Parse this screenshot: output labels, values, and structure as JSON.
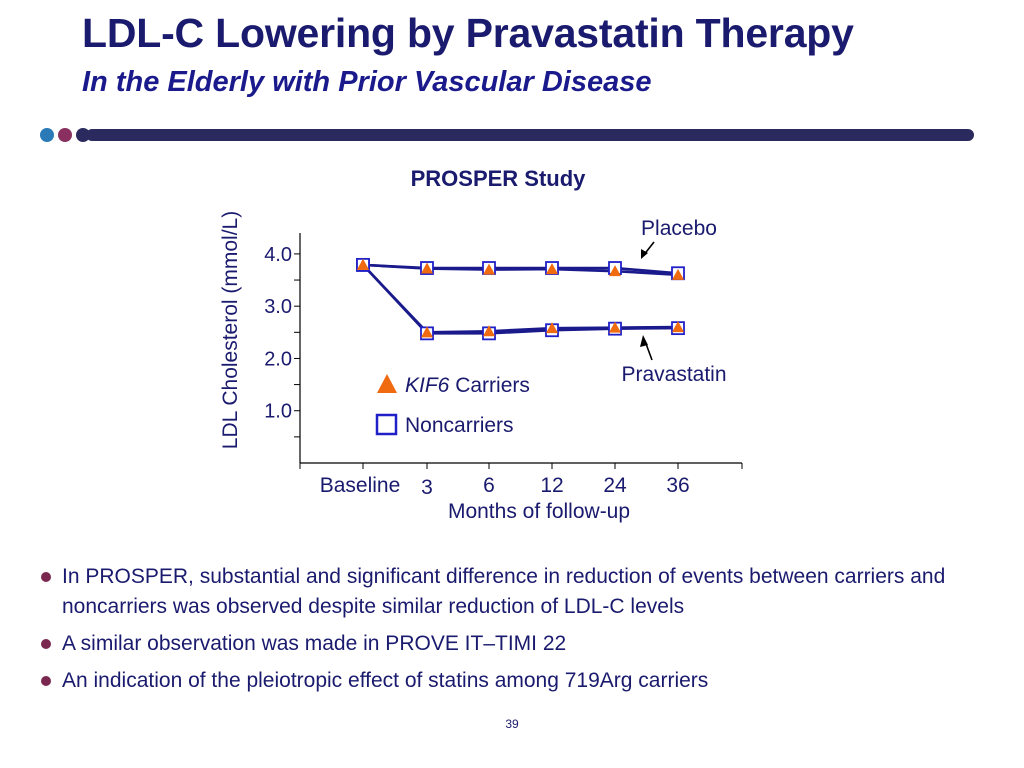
{
  "slide": {
    "title": "LDL-C Lowering by Pravastatin Therapy",
    "subtitle": "In the Elderly with Prior Vascular Disease",
    "page_number": "39",
    "bullets": [
      "In PROSPER,  substantial and significant difference in reduction of events between carriers and noncarriers was observed despite similar reduction of LDL-C levels",
      "A similar observation was made in PROVE IT–TIMI 22",
      "An indication of the pleiotropic effect of statins among 719Arg carriers"
    ],
    "colors": {
      "title": "#1a1a6e",
      "line": "#1a1a8c",
      "carrier_marker": "#f06a10",
      "noncarrier_marker": "#2020c8",
      "dot_1": "#2a7ab8",
      "dot_2": "#8a3060",
      "dot_3": "#2a2a5e"
    }
  },
  "chart_data": {
    "type": "line",
    "title": "PROSPER Study",
    "xlabel": "Months of follow-up",
    "ylabel": "LDL Cholesterol (mmol/L)",
    "ylim": [
      0,
      4.4
    ],
    "yticks": [
      1.0,
      2.0,
      3.0,
      4.0
    ],
    "ytick_labels": [
      "1.0",
      "2.0",
      "3.0",
      "4.0"
    ],
    "categories": [
      "Baseline",
      "3",
      "6",
      "12",
      "24",
      "36"
    ],
    "legend": [
      {
        "label_italic": "KIF6",
        "label": " Carriers",
        "marker": "triangle"
      },
      {
        "label": "Noncarriers",
        "marker": "square"
      }
    ],
    "annotations": [
      "Placebo",
      "Pravastatin"
    ],
    "series": [
      {
        "group": "Placebo",
        "marker": "square",
        "values": [
          3.79,
          3.73,
          3.73,
          3.73,
          3.73,
          3.63
        ]
      },
      {
        "group": "Placebo",
        "marker": "triangle",
        "values": [
          3.79,
          3.72,
          3.7,
          3.71,
          3.67,
          3.6
        ]
      },
      {
        "group": "Pravastatin",
        "marker": "square",
        "values": [
          3.79,
          2.48,
          2.48,
          2.54,
          2.57,
          2.58
        ]
      },
      {
        "group": "Pravastatin",
        "marker": "triangle",
        "values": [
          3.79,
          2.5,
          2.52,
          2.58,
          2.59,
          2.6
        ]
      }
    ],
    "legend_placement": "center",
    "grid": false
  }
}
